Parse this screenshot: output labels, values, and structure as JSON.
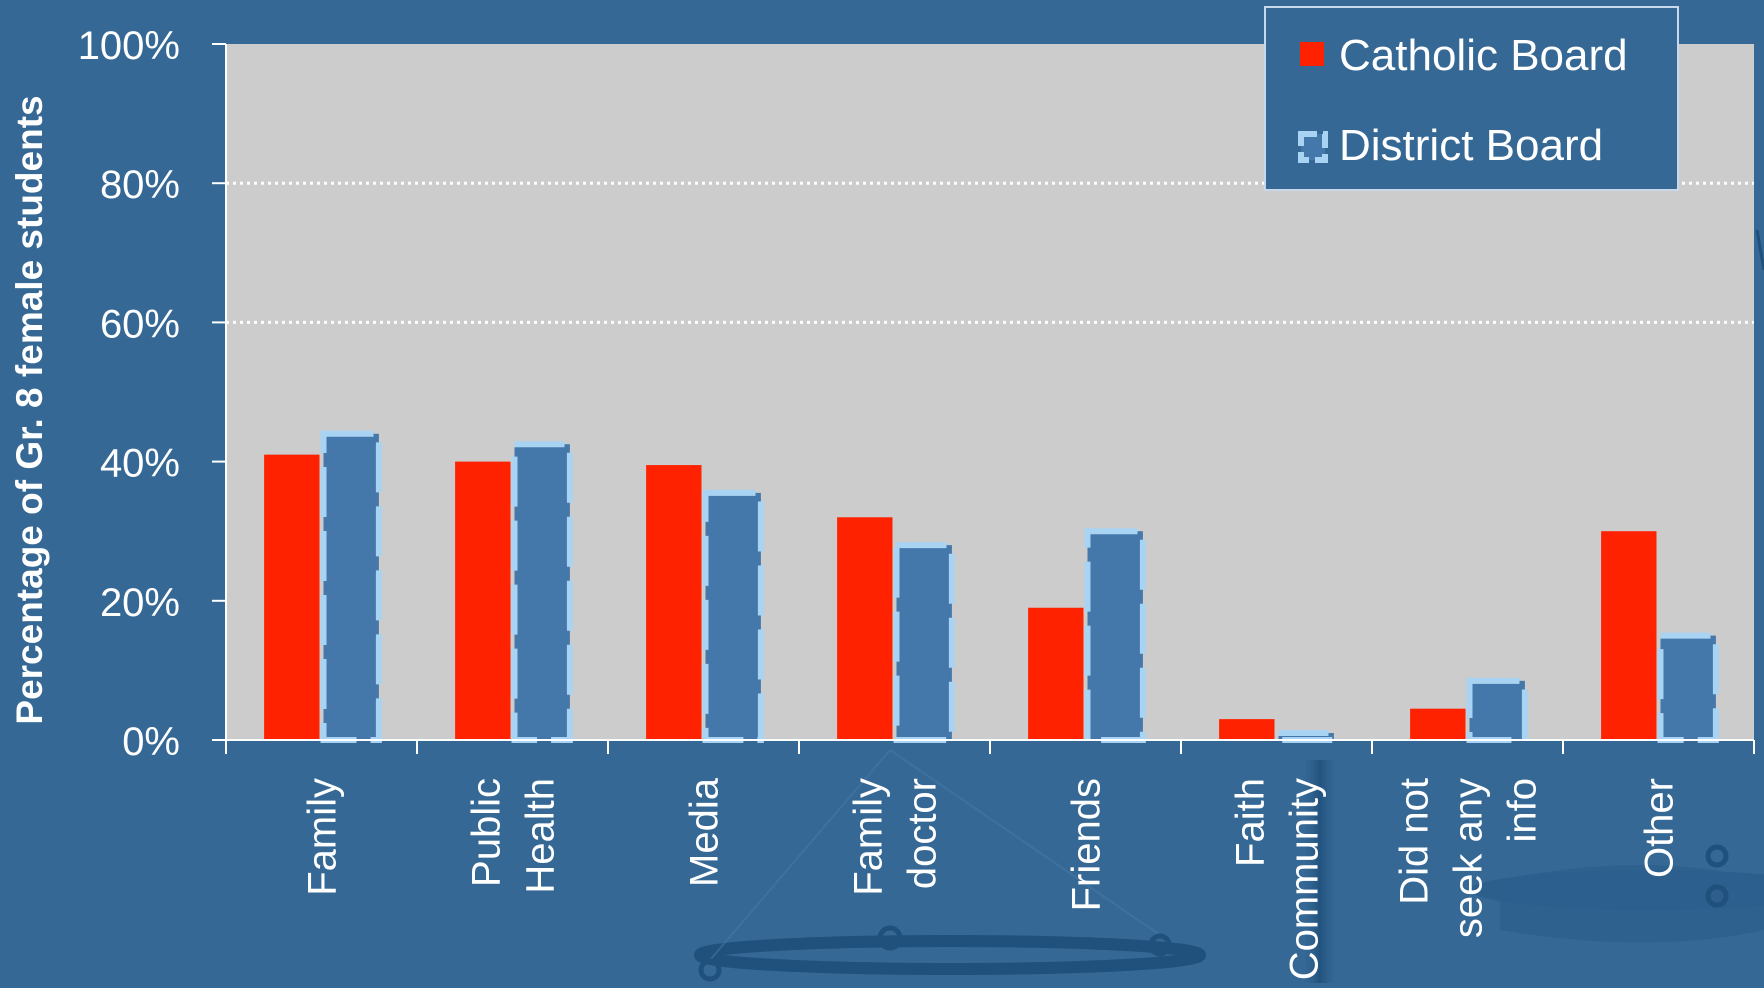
{
  "chart_data": {
    "type": "bar",
    "title": "",
    "ylabel": "Percentage of Gr. 8 female students",
    "xlabel": "",
    "ylim": [
      0,
      100
    ],
    "yticks": [
      "0%",
      "20%",
      "40%",
      "60%",
      "80%",
      "100%"
    ],
    "ytick_values": [
      0,
      20,
      40,
      60,
      80,
      100
    ],
    "grid_values": [
      60,
      80
    ],
    "categories": [
      [
        "Family"
      ],
      [
        "Public",
        "Health"
      ],
      [
        "Media"
      ],
      [
        "Family",
        "doctor"
      ],
      [
        "Friends"
      ],
      [
        "Faith",
        "Community"
      ],
      [
        "Did not",
        "seek any",
        "info"
      ],
      [
        "Other"
      ]
    ],
    "series": [
      {
        "name": "Catholic Board",
        "color": "#ff2200",
        "values": [
          41,
          40,
          39.5,
          32,
          19,
          3,
          4.5,
          30
        ]
      },
      {
        "name": "District Board",
        "color": "#4478ab",
        "border_color": "#a9d3f3",
        "values": [
          44,
          42.5,
          35.5,
          28,
          30,
          1,
          8.5,
          15
        ]
      }
    ],
    "legend": "top-right",
    "plot_background": "#cccccc",
    "grid": true
  }
}
